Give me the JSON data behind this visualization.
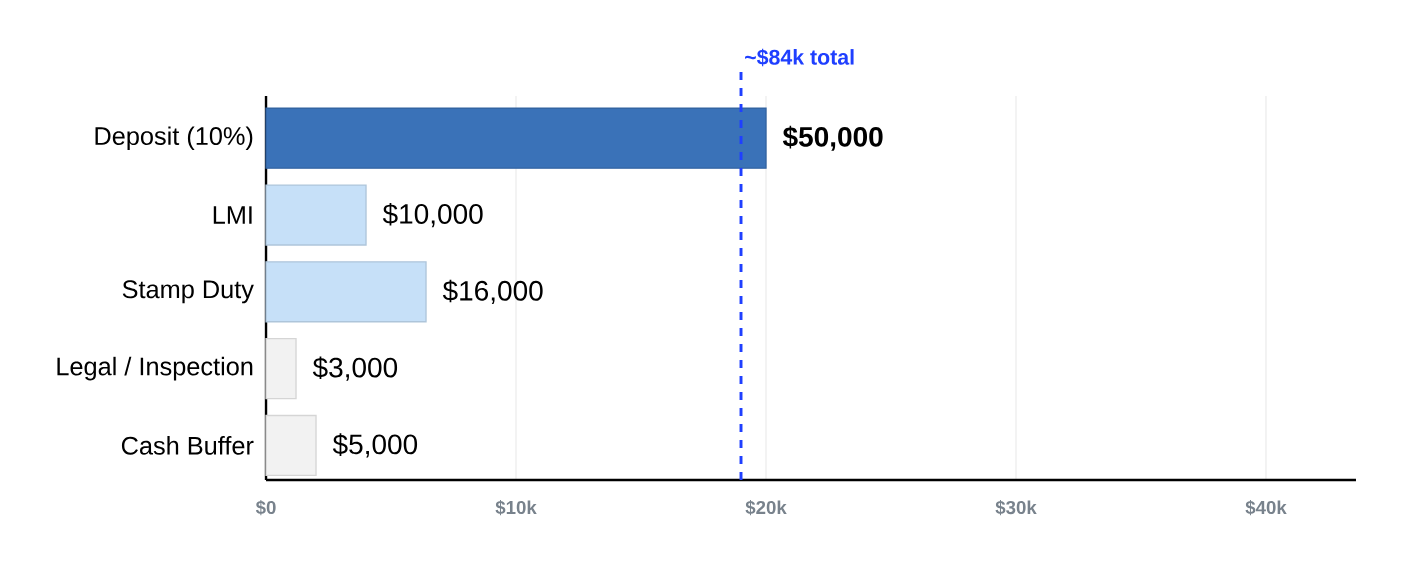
{
  "chart_data": {
    "type": "bar",
    "orientation": "horizontal",
    "categories": [
      "Deposit (10%)",
      "LMI",
      "Stamp Duty",
      "Legal / Inspection",
      "Cash Buffer"
    ],
    "values": [
      20000,
      4000,
      6400,
      1200,
      2000
    ],
    "colors": [
      "#3a72b8",
      "#c6e0f8",
      "#c6e0f8",
      "#f2f2f2",
      "#f2f2f2"
    ],
    "annotations": [
      {
        "text": "**$50,000**",
        "x": 20000,
        "y": "Deposit (10%)"
      },
      {
        "text": "$10,000",
        "x": 4000,
        "y": "LMI"
      },
      {
        "text": "$16,000",
        "x": 6400,
        "y": "Stamp Duty"
      },
      {
        "text": "$3,000",
        "x": 1200,
        "y": "Legal / Inspection"
      },
      {
        "text": "$5,000",
        "x": 2000,
        "y": "Cash Buffer"
      }
    ],
    "xlim": [
      0,
      43600
    ],
    "xticks": [
      {
        "value": 0,
        "label": "$0"
      },
      {
        "value": 10000,
        "label": "$10k"
      },
      {
        "value": 20000,
        "label": "$20k"
      },
      {
        "value": 30000,
        "label": "$30k"
      },
      {
        "value": 40000,
        "label": "$40k"
      }
    ],
    "ref_lines": [
      {
        "axis": "x",
        "value": 19000,
        "label": "~$84k total",
        "color": "#1f3fff",
        "line_style": "dashed"
      }
    ],
    "grid": "x"
  }
}
